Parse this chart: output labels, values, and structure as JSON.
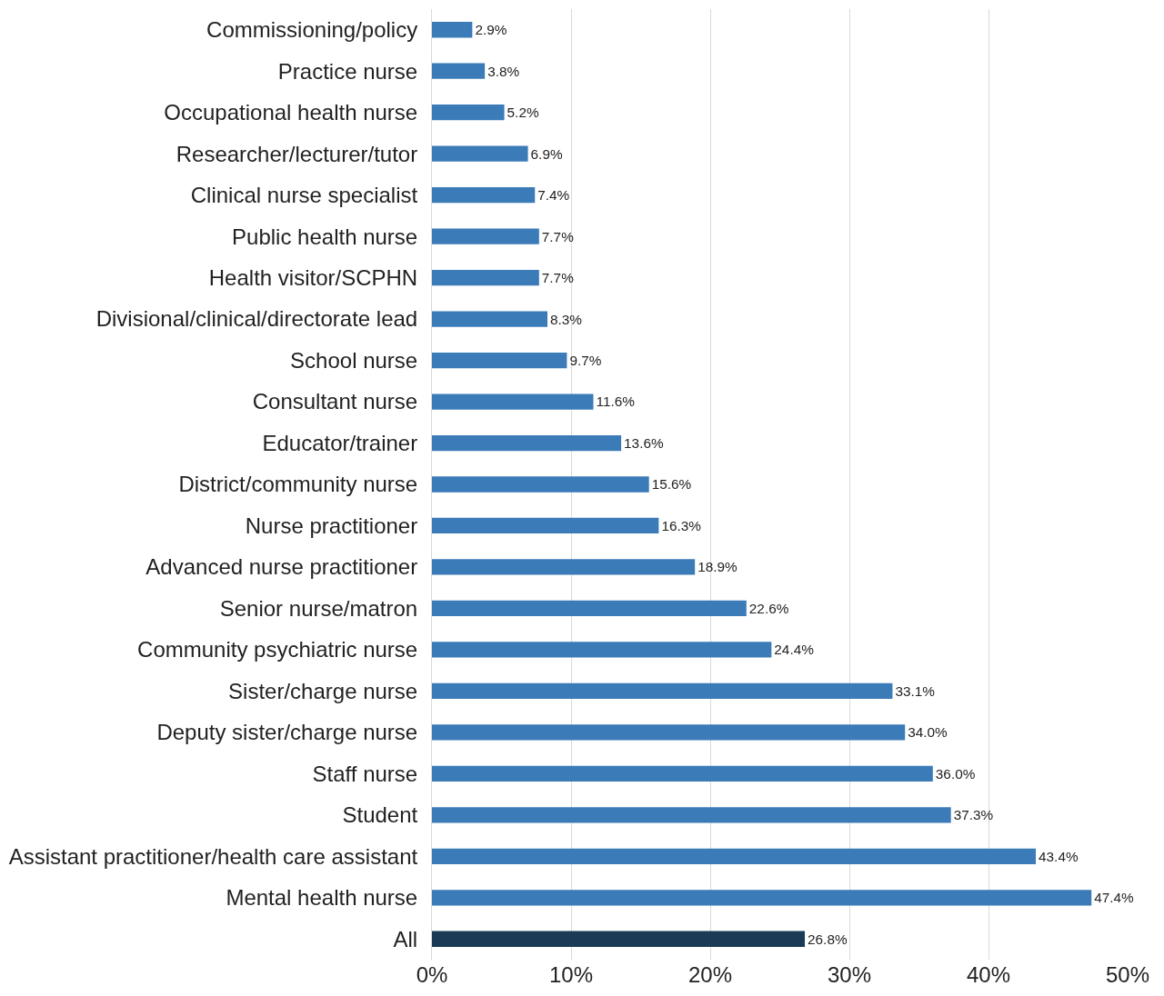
{
  "chart_data": {
    "type": "bar",
    "orientation": "horizontal",
    "categories": [
      "Commissioning/policy",
      "Practice nurse",
      "Occupational health nurse",
      "Researcher/lecturer/tutor",
      "Clinical nurse specialist",
      "Public health nurse",
      "Health visitor/SCPHN",
      "Divisional/clinical/directorate lead",
      "School nurse",
      "Consultant nurse",
      "Educator/trainer",
      "District/community nurse",
      "Nurse practitioner",
      "Advanced nurse practitioner",
      "Senior nurse/matron",
      "Community psychiatric nurse",
      "Sister/charge nurse",
      "Deputy sister/charge nurse",
      "Staff nurse",
      "Student",
      "Assistant practitioner/health care assistant",
      "Mental health nurse",
      "All"
    ],
    "values": [
      2.9,
      3.8,
      5.2,
      6.9,
      7.4,
      7.7,
      7.7,
      8.3,
      9.7,
      11.6,
      13.6,
      15.6,
      16.3,
      18.9,
      22.6,
      24.4,
      33.1,
      34.0,
      36.0,
      37.3,
      43.4,
      47.4,
      26.8
    ],
    "value_labels": [
      "2.9%",
      "3.8%",
      "5.2%",
      "6.9%",
      "7.4%",
      "7.7%",
      "7.7%",
      "8.3%",
      "9.7%",
      "11.6%",
      "13.6%",
      "15.6%",
      "16.3%",
      "18.9%",
      "22.6%",
      "24.4%",
      "33.1%",
      "34.0%",
      "36.0%",
      "37.3%",
      "43.4%",
      "47.4%",
      "26.8%"
    ],
    "colors": [
      "#3a7bb8",
      "#3a7bb8",
      "#3a7bb8",
      "#3a7bb8",
      "#3a7bb8",
      "#3a7bb8",
      "#3a7bb8",
      "#3a7bb8",
      "#3a7bb8",
      "#3a7bb8",
      "#3a7bb8",
      "#3a7bb8",
      "#3a7bb8",
      "#3a7bb8",
      "#3a7bb8",
      "#3a7bb8",
      "#3a7bb8",
      "#3a7bb8",
      "#3a7bb8",
      "#3a7bb8",
      "#3a7bb8",
      "#3a7bb8",
      "#1b3a55"
    ],
    "xlim": [
      0,
      50
    ],
    "xticks": [
      {
        "value": 0,
        "label": "0%"
      },
      {
        "value": 10,
        "label": "10%"
      },
      {
        "value": 20,
        "label": "20%"
      },
      {
        "value": 30,
        "label": "30%"
      },
      {
        "value": 40,
        "label": "40%"
      },
      {
        "value": 50,
        "label": "50%"
      }
    ],
    "grid": "x"
  }
}
